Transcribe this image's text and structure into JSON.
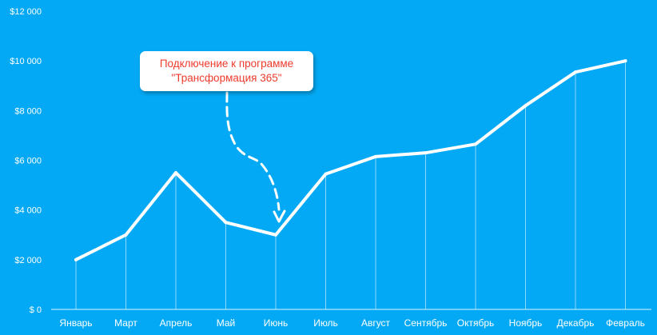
{
  "chart_data": {
    "type": "line",
    "categories": [
      "Январь",
      "Март",
      "Апрель",
      "Май",
      "Июнь",
      "Июль",
      "Август",
      "Сентябрь",
      "Октябрь",
      "Ноябрь",
      "Декабрь",
      "Февраль"
    ],
    "series": [
      {
        "values": [
          2000,
          3000,
          5500,
          3500,
          3000,
          5450,
          6150,
          6300,
          6650,
          8200,
          9550,
          10000
        ]
      }
    ],
    "ylim": [
      0,
      12000
    ],
    "yticks": [
      0,
      2000,
      4000,
      6000,
      8000,
      10000,
      12000
    ],
    "ytick_labels": [
      "$ 0",
      "$2 000",
      "$4 000",
      "$6 000",
      "$8 000",
      "$10 000",
      "$12 000"
    ],
    "drop_lines": true,
    "grid": false,
    "title": "",
    "xlabel": "",
    "ylabel": "",
    "annotation": {
      "line1": "Подключение к программе",
      "line2": "\"Трансформация 365\"",
      "points_to": "Июнь",
      "text_color": "#ef3b2d"
    },
    "colors": {
      "background": "#03a9f4",
      "line": "#ffffff",
      "text": "#ffffff"
    }
  }
}
